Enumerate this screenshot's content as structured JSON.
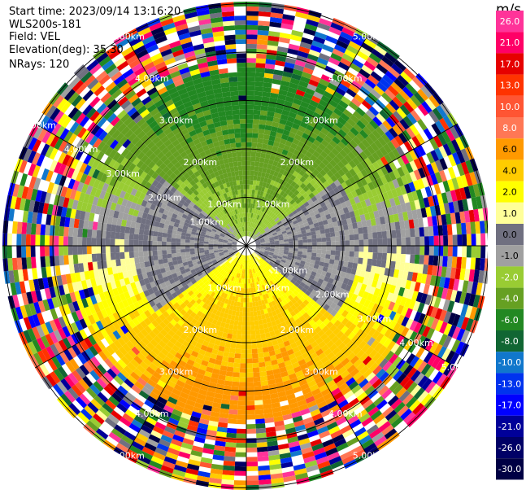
{
  "header": {
    "start_time": "Start time: 2023/09/14 13:16:20",
    "instrument": "WLS200s-181",
    "field": "Field: VEL",
    "elevation": "Elevation(deg): 35.30",
    "nrays": "NRays: 120"
  },
  "chart_data": {
    "type": "heatmap",
    "projection": "polar (PPI scan)",
    "range_rings": [
      "1.00km",
      "2.00km",
      "3.00km",
      "4.00km",
      "5.00km"
    ],
    "range_values_km": [
      1,
      2,
      3,
      4,
      5
    ],
    "colorbar": {
      "unit": "m/s",
      "tick_labels": [
        "26.0",
        "21.0",
        "17.0",
        "13.0",
        "10.0",
        "8.0",
        "6.0",
        "4.0",
        "2.0",
        "1.0",
        "0.0",
        "-1.0",
        "-2.0",
        "-4.0",
        "-6.0",
        "-8.0",
        "-10.0",
        "-13.0",
        "-17.0",
        "-21.0",
        "-26.0",
        "-30.0"
      ],
      "colors": [
        "#ff3399",
        "#ff0066",
        "#e60000",
        "#ff3300",
        "#ff5533",
        "#ff7755",
        "#ff9900",
        "#ffcc00",
        "#ffff00",
        "#ffff99",
        "#707080",
        "#a0a0a0",
        "#99cc33",
        "#66a022",
        "#228822",
        "#116633",
        "#1177cc",
        "#0033ee",
        "#0000ff",
        "#000099",
        "#000066",
        "#000044"
      ]
    }
  }
}
